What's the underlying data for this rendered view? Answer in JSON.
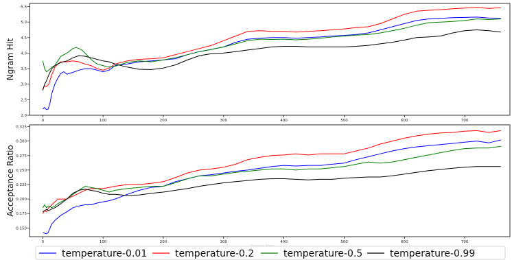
{
  "chart_data": [
    {
      "type": "line",
      "title": "",
      "xlabel": "",
      "ylabel": "Ngram Hit",
      "xlim": [
        -22,
        775
      ],
      "ylim": [
        2.0,
        5.6
      ],
      "xticks": [
        0,
        100,
        200,
        300,
        400,
        500,
        600,
        700
      ],
      "yticks": [
        2.0,
        2.5,
        3.0,
        3.5,
        4.0,
        4.5,
        5.0,
        5.5
      ],
      "xtick_labels": [
        "0",
        "100",
        "200",
        "300",
        "400",
        "500",
        "600",
        "700"
      ],
      "ytick_labels": [
        "2.0",
        "2.5",
        "3.0",
        "3.5",
        "4.0",
        "4.5",
        "5.0",
        "5.5"
      ],
      "grid": false,
      "series": [
        {
          "name": "temperature-0.01",
          "color": "#0000ff",
          "x": [
            0,
            3,
            6,
            9,
            12,
            15,
            20,
            25,
            30,
            35,
            40,
            50,
            60,
            70,
            80,
            90,
            100,
            110,
            120,
            140,
            160,
            180,
            200,
            220,
            240,
            260,
            280,
            300,
            320,
            340,
            360,
            380,
            400,
            420,
            440,
            460,
            480,
            500,
            520,
            540,
            560,
            580,
            600,
            620,
            640,
            660,
            680,
            700,
            720,
            740,
            760
          ],
          "y": [
            2.2,
            2.25,
            2.18,
            2.2,
            2.4,
            2.7,
            3.0,
            3.2,
            3.35,
            3.4,
            3.32,
            3.38,
            3.45,
            3.5,
            3.5,
            3.45,
            3.4,
            3.45,
            3.6,
            3.65,
            3.72,
            3.75,
            3.78,
            3.82,
            3.95,
            4.05,
            4.12,
            4.2,
            4.35,
            4.45,
            4.48,
            4.5,
            4.5,
            4.48,
            4.5,
            4.52,
            4.55,
            4.57,
            4.6,
            4.65,
            4.75,
            4.85,
            4.95,
            5.05,
            5.1,
            5.12,
            5.14,
            5.15,
            5.16,
            5.13,
            5.12
          ]
        },
        {
          "name": "temperature-0.2",
          "color": "#ff0000",
          "x": [
            0,
            3,
            6,
            10,
            15,
            20,
            25,
            30,
            40,
            50,
            60,
            70,
            80,
            90,
            100,
            110,
            120,
            140,
            160,
            180,
            200,
            220,
            240,
            260,
            280,
            300,
            320,
            340,
            360,
            380,
            400,
            420,
            440,
            460,
            480,
            500,
            520,
            540,
            560,
            580,
            600,
            620,
            640,
            660,
            680,
            700,
            720,
            740,
            760
          ],
          "y": [
            2.85,
            2.95,
            2.92,
            3.0,
            3.3,
            3.55,
            3.65,
            3.72,
            3.72,
            3.75,
            3.72,
            3.65,
            3.6,
            3.5,
            3.45,
            3.52,
            3.65,
            3.75,
            3.8,
            3.82,
            3.85,
            3.95,
            4.05,
            4.15,
            4.25,
            4.4,
            4.55,
            4.7,
            4.72,
            4.7,
            4.7,
            4.68,
            4.7,
            4.72,
            4.75,
            4.78,
            4.82,
            4.85,
            4.95,
            5.1,
            5.25,
            5.35,
            5.38,
            5.4,
            5.43,
            5.45,
            5.47,
            5.44,
            5.46
          ]
        },
        {
          "name": "temperature-0.5",
          "color": "#008000",
          "x": [
            0,
            3,
            6,
            10,
            15,
            20,
            25,
            30,
            40,
            50,
            55,
            60,
            65,
            70,
            80,
            90,
            100,
            110,
            120,
            140,
            160,
            180,
            200,
            220,
            240,
            260,
            280,
            300,
            320,
            340,
            360,
            380,
            400,
            420,
            440,
            460,
            480,
            500,
            520,
            540,
            560,
            580,
            600,
            620,
            640,
            660,
            680,
            700,
            720,
            740,
            760
          ],
          "y": [
            3.75,
            3.5,
            3.4,
            3.45,
            3.55,
            3.6,
            3.75,
            3.9,
            4.0,
            4.15,
            4.18,
            4.15,
            4.1,
            4.0,
            3.8,
            3.65,
            3.6,
            3.55,
            3.58,
            3.7,
            3.75,
            3.72,
            3.78,
            3.85,
            3.95,
            4.05,
            4.12,
            4.2,
            4.3,
            4.4,
            4.45,
            4.44,
            4.45,
            4.43,
            4.45,
            4.48,
            4.52,
            4.55,
            4.58,
            4.6,
            4.65,
            4.72,
            4.8,
            4.9,
            4.98,
            5.0,
            5.02,
            5.05,
            5.1,
            5.08,
            5.1
          ]
        },
        {
          "name": "temperature-0.99",
          "color": "#000000",
          "x": [
            0,
            3,
            6,
            10,
            15,
            20,
            30,
            40,
            50,
            60,
            70,
            80,
            90,
            100,
            110,
            120,
            140,
            160,
            180,
            200,
            220,
            240,
            260,
            280,
            300,
            320,
            340,
            360,
            380,
            400,
            420,
            440,
            460,
            480,
            500,
            520,
            540,
            560,
            580,
            600,
            620,
            640,
            660,
            680,
            700,
            720,
            740,
            760
          ],
          "y": [
            2.8,
            3.0,
            3.1,
            3.3,
            3.5,
            3.6,
            3.7,
            3.75,
            3.85,
            3.92,
            3.9,
            3.85,
            3.8,
            3.75,
            3.72,
            3.65,
            3.55,
            3.48,
            3.47,
            3.52,
            3.62,
            3.78,
            3.92,
            3.98,
            4.0,
            4.05,
            4.1,
            4.15,
            4.2,
            4.22,
            4.22,
            4.2,
            4.2,
            4.2,
            4.2,
            4.22,
            4.25,
            4.3,
            4.35,
            4.42,
            4.5,
            4.52,
            4.55,
            4.65,
            4.72,
            4.75,
            4.72,
            4.68
          ]
        }
      ]
    },
    {
      "type": "line",
      "title": "",
      "xlabel": "Training Steps",
      "ylabel": "Acceptance Ratio",
      "xlim": [
        -22,
        775
      ],
      "ylim": [
        0.135,
        0.328
      ],
      "xticks": [
        0,
        100,
        200,
        300,
        400,
        500,
        600,
        700
      ],
      "yticks": [
        0.15,
        0.175,
        0.2,
        0.225,
        0.25,
        0.275,
        0.3,
        0.325
      ],
      "xtick_labels": [
        "0",
        "100",
        "200",
        "300",
        "400",
        "500",
        "600",
        "700"
      ],
      "ytick_labels": [
        "0.150",
        "0.175",
        "0.200",
        "0.225",
        "0.250",
        "0.275",
        "0.300",
        "0.325"
      ],
      "grid": false,
      "series": [
        {
          "name": "temperature-0.01",
          "color": "#0000ff",
          "x": [
            0,
            3,
            6,
            9,
            12,
            15,
            20,
            30,
            40,
            50,
            60,
            70,
            80,
            90,
            100,
            110,
            120,
            140,
            160,
            180,
            200,
            220,
            240,
            260,
            280,
            300,
            320,
            340,
            360,
            380,
            400,
            420,
            440,
            460,
            480,
            500,
            520,
            540,
            560,
            580,
            600,
            620,
            640,
            660,
            680,
            700,
            720,
            740,
            760
          ],
          "y": [
            0.142,
            0.141,
            0.14,
            0.142,
            0.15,
            0.157,
            0.163,
            0.172,
            0.178,
            0.185,
            0.188,
            0.19,
            0.19,
            0.193,
            0.195,
            0.197,
            0.2,
            0.208,
            0.215,
            0.22,
            0.222,
            0.23,
            0.235,
            0.24,
            0.242,
            0.245,
            0.248,
            0.25,
            0.253,
            0.256,
            0.258,
            0.257,
            0.258,
            0.258,
            0.26,
            0.262,
            0.268,
            0.273,
            0.278,
            0.283,
            0.287,
            0.29,
            0.292,
            0.294,
            0.296,
            0.298,
            0.3,
            0.297,
            0.302
          ]
        },
        {
          "name": "temperature-0.2",
          "color": "#ff0000",
          "x": [
            0,
            3,
            6,
            10,
            15,
            20,
            25,
            30,
            40,
            50,
            60,
            70,
            80,
            90,
            100,
            110,
            120,
            140,
            160,
            180,
            200,
            220,
            240,
            260,
            280,
            300,
            320,
            340,
            360,
            380,
            400,
            420,
            440,
            460,
            480,
            500,
            520,
            540,
            560,
            580,
            600,
            620,
            640,
            660,
            680,
            700,
            720,
            740,
            760
          ],
          "y": [
            0.175,
            0.18,
            0.178,
            0.185,
            0.19,
            0.195,
            0.2,
            0.2,
            0.2,
            0.205,
            0.21,
            0.215,
            0.218,
            0.218,
            0.218,
            0.22,
            0.222,
            0.225,
            0.225,
            0.227,
            0.23,
            0.237,
            0.245,
            0.25,
            0.252,
            0.255,
            0.26,
            0.268,
            0.272,
            0.275,
            0.276,
            0.278,
            0.276,
            0.278,
            0.278,
            0.278,
            0.283,
            0.288,
            0.295,
            0.3,
            0.305,
            0.309,
            0.312,
            0.314,
            0.315,
            0.317,
            0.318,
            0.315,
            0.318
          ]
        },
        {
          "name": "temperature-0.5",
          "color": "#008000",
          "x": [
            0,
            3,
            6,
            10,
            15,
            20,
            25,
            30,
            40,
            50,
            60,
            70,
            80,
            90,
            100,
            110,
            120,
            140,
            160,
            180,
            200,
            220,
            240,
            260,
            280,
            300,
            320,
            340,
            360,
            380,
            400,
            420,
            440,
            460,
            480,
            500,
            520,
            540,
            560,
            580,
            600,
            620,
            640,
            660,
            680,
            700,
            720,
            740,
            760
          ],
          "y": [
            0.185,
            0.19,
            0.185,
            0.188,
            0.185,
            0.188,
            0.192,
            0.195,
            0.2,
            0.208,
            0.215,
            0.222,
            0.22,
            0.218,
            0.215,
            0.212,
            0.215,
            0.218,
            0.22,
            0.222,
            0.222,
            0.228,
            0.235,
            0.24,
            0.24,
            0.243,
            0.246,
            0.248,
            0.25,
            0.252,
            0.252,
            0.25,
            0.252,
            0.252,
            0.254,
            0.256,
            0.26,
            0.264,
            0.262,
            0.264,
            0.268,
            0.272,
            0.276,
            0.28,
            0.284,
            0.287,
            0.288,
            0.288,
            0.291
          ]
        },
        {
          "name": "temperature-0.99",
          "color": "#000000",
          "x": [
            0,
            3,
            6,
            10,
            15,
            20,
            30,
            40,
            50,
            60,
            70,
            80,
            90,
            100,
            110,
            120,
            140,
            160,
            180,
            200,
            220,
            240,
            260,
            280,
            300,
            320,
            340,
            360,
            380,
            400,
            420,
            440,
            460,
            480,
            500,
            520,
            540,
            560,
            580,
            600,
            620,
            640,
            660,
            680,
            700,
            720,
            740,
            760
          ],
          "y": [
            0.178,
            0.18,
            0.182,
            0.18,
            0.183,
            0.185,
            0.192,
            0.2,
            0.21,
            0.215,
            0.217,
            0.215,
            0.213,
            0.21,
            0.208,
            0.208,
            0.206,
            0.207,
            0.21,
            0.212,
            0.215,
            0.218,
            0.222,
            0.225,
            0.228,
            0.23,
            0.232,
            0.234,
            0.235,
            0.235,
            0.234,
            0.233,
            0.234,
            0.234,
            0.236,
            0.237,
            0.238,
            0.238,
            0.24,
            0.243,
            0.246,
            0.249,
            0.251,
            0.253,
            0.255,
            0.256,
            0.256,
            0.256
          ]
        }
      ]
    }
  ],
  "legend": {
    "position": "bottom",
    "entries": [
      {
        "label": "temperature-0.01",
        "color": "#0000ff"
      },
      {
        "label": "temperature-0.2",
        "color": "#ff0000"
      },
      {
        "label": "temperature-0.5",
        "color": "#008000"
      },
      {
        "label": "temperature-0.99",
        "color": "#000000"
      }
    ]
  }
}
